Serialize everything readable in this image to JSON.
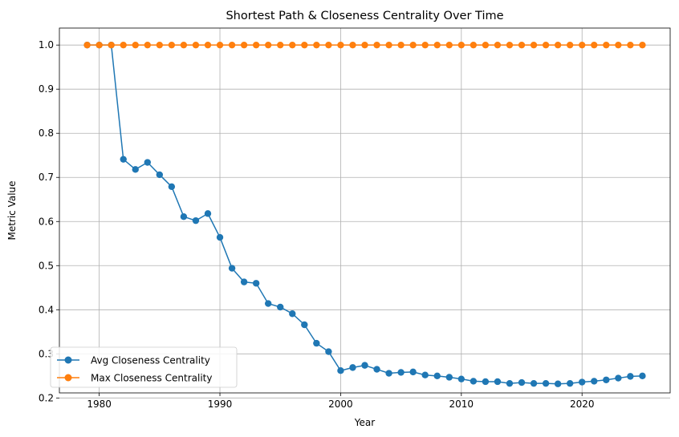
{
  "chart_data": {
    "type": "line",
    "title": "Shortest Path & Closeness Centrality Over Time",
    "xlabel": "Year",
    "ylabel": "Metric Value",
    "xlim": [
      1976.7,
      2027.3
    ],
    "ylim": [
      0.2115,
      1.0385
    ],
    "xticks": [
      1980,
      1990,
      2000,
      2010,
      2020
    ],
    "yticks": [
      0.2,
      0.3,
      0.4,
      0.5,
      0.6,
      0.7,
      0.8,
      0.9,
      1.0
    ],
    "grid": true,
    "legend_position": "lower-left",
    "x": [
      1979,
      1980,
      1981,
      1982,
      1983,
      1984,
      1985,
      1986,
      1987,
      1988,
      1989,
      1990,
      1991,
      1992,
      1993,
      1994,
      1995,
      1996,
      1997,
      1998,
      1999,
      2000,
      2001,
      2002,
      2003,
      2004,
      2005,
      2006,
      2007,
      2008,
      2009,
      2010,
      2011,
      2012,
      2013,
      2014,
      2015,
      2016,
      2017,
      2018,
      2019,
      2020,
      2021,
      2022,
      2023,
      2024,
      2025
    ],
    "series": [
      {
        "name": "Avg Closeness Centrality",
        "color": "#1f77b4",
        "marker": "circle",
        "values": [
          1.0,
          1.0,
          1.0,
          0.741,
          0.718,
          0.734,
          0.706,
          0.679,
          0.611,
          0.602,
          0.618,
          0.564,
          0.494,
          0.463,
          0.46,
          0.414,
          0.406,
          0.391,
          0.366,
          0.324,
          0.305,
          0.262,
          0.269,
          0.274,
          0.265,
          0.256,
          0.258,
          0.259,
          0.252,
          0.25,
          0.247,
          0.243,
          0.238,
          0.237,
          0.237,
          0.233,
          0.235,
          0.233,
          0.233,
          0.232,
          0.233,
          0.236,
          0.238,
          0.241,
          0.245,
          0.249,
          0.25
        ]
      },
      {
        "name": "Max Closeness Centrality",
        "color": "#ff7f0e",
        "marker": "circle",
        "values": [
          1.0,
          1.0,
          1.0,
          1.0,
          1.0,
          1.0,
          1.0,
          1.0,
          1.0,
          1.0,
          1.0,
          1.0,
          1.0,
          1.0,
          1.0,
          1.0,
          1.0,
          1.0,
          1.0,
          1.0,
          1.0,
          1.0,
          1.0,
          1.0,
          1.0,
          1.0,
          1.0,
          1.0,
          1.0,
          1.0,
          1.0,
          1.0,
          1.0,
          1.0,
          1.0,
          1.0,
          1.0,
          1.0,
          1.0,
          1.0,
          1.0,
          1.0,
          1.0,
          1.0,
          1.0,
          1.0,
          1.0
        ]
      }
    ]
  }
}
